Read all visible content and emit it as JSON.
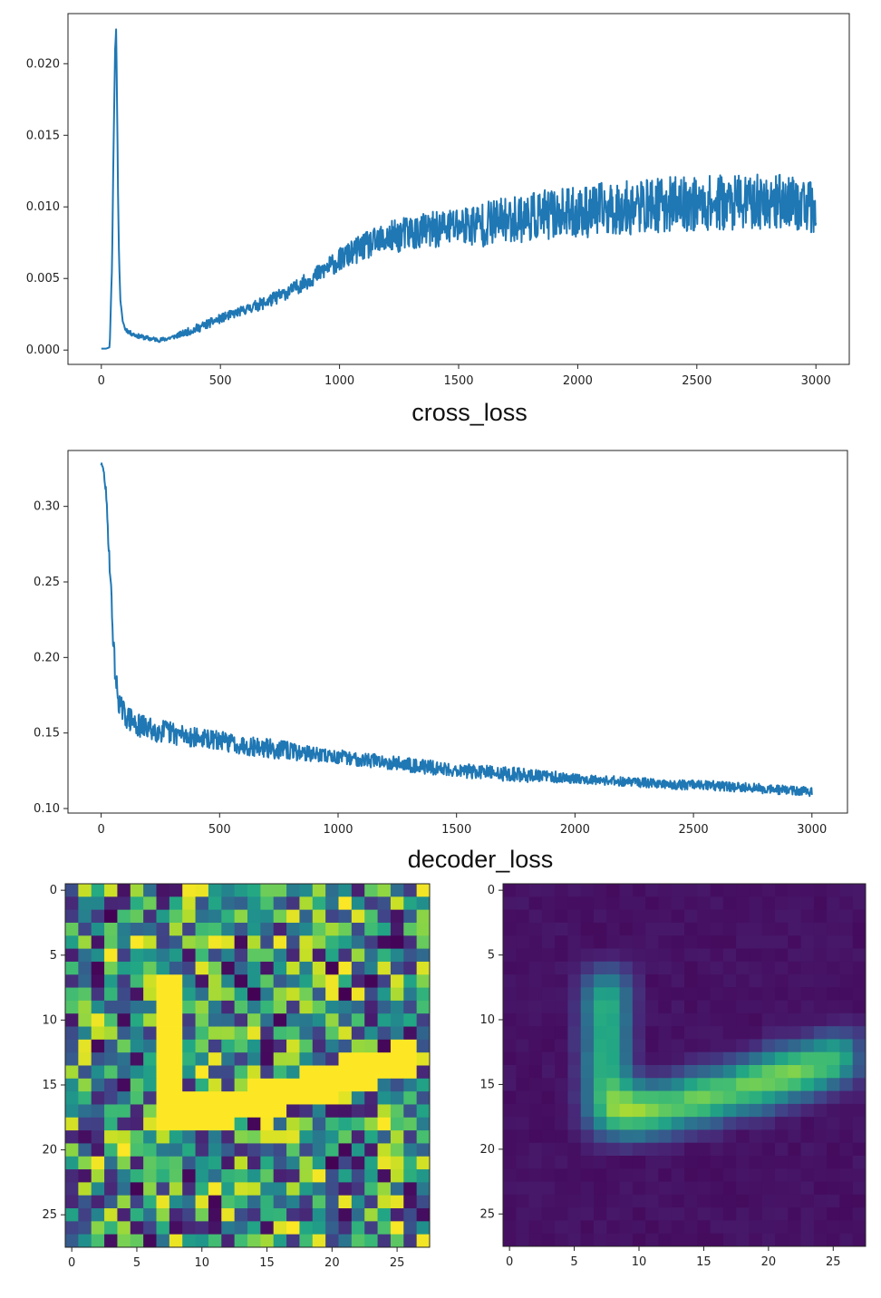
{
  "colors": {
    "series": "#1f77b4",
    "axis": "#222222"
  },
  "captions": {
    "plot1": "cross_loss",
    "plot2": "decoder_loss"
  },
  "chart_data": [
    {
      "type": "line",
      "xlabel": "cross_loss",
      "xlim": [
        -140,
        3140
      ],
      "ylim": [
        -0.001,
        0.0235
      ],
      "x_ticks": [
        0,
        500,
        1000,
        1500,
        2000,
        2500,
        3000
      ],
      "x_tick_labels": [
        "0",
        "500",
        "1000",
        "1500",
        "2000",
        "2500",
        "3000"
      ],
      "y_ticks": [
        0,
        0.005,
        0.01,
        0.015,
        0.02
      ],
      "y_tick_labels": [
        "0.000",
        "0.005",
        "0.010",
        "0.015",
        "0.020"
      ],
      "grid": false,
      "x": [
        0,
        20,
        35,
        45,
        52,
        58,
        62,
        65,
        70,
        75,
        80,
        90,
        100,
        120,
        150,
        200,
        250,
        300,
        400,
        500,
        600,
        700,
        800,
        900,
        1000,
        1100,
        1200,
        1300,
        1400,
        1500,
        1600,
        1700,
        1800,
        1900,
        2000,
        2100,
        2200,
        2300,
        2400,
        2500,
        2600,
        2700,
        2800,
        2900,
        3000
      ],
      "y": [
        0.0001,
        0.0001,
        0.0002,
        0.006,
        0.015,
        0.021,
        0.0224,
        0.019,
        0.011,
        0.006,
        0.0035,
        0.002,
        0.0015,
        0.0012,
        0.001,
        0.0008,
        0.0007,
        0.0009,
        0.0015,
        0.0022,
        0.0028,
        0.0034,
        0.0042,
        0.0052,
        0.0063,
        0.0072,
        0.0078,
        0.0082,
        0.0084,
        0.0087,
        0.0088,
        0.0091,
        0.0093,
        0.0095,
        0.0096,
        0.0098,
        0.0099,
        0.0101,
        0.0102,
        0.0102,
        0.0103,
        0.0103,
        0.0104,
        0.0104,
        0.0098
      ],
      "noise_amplitude": [
        0,
        0,
        0,
        0,
        0,
        0,
        0,
        0,
        0,
        0,
        0,
        0,
        0.0001,
        0.0001,
        0.0001,
        0.0001,
        0.0001,
        0.0001,
        0.0002,
        0.0002,
        0.0002,
        0.0003,
        0.0003,
        0.0004,
        0.0005,
        0.0006,
        0.0007,
        0.0008,
        0.0008,
        0.0009,
        0.001,
        0.001,
        0.0011,
        0.0011,
        0.0011,
        0.0012,
        0.0012,
        0.0012,
        0.0012,
        0.0012,
        0.0012,
        0.0012,
        0.0012,
        0.0012,
        0.0011
      ]
    },
    {
      "type": "line",
      "xlabel": "decoder_loss",
      "xlim": [
        -140,
        3150
      ],
      "ylim": [
        0.097,
        0.337
      ],
      "x_ticks": [
        0,
        500,
        1000,
        1500,
        2000,
        2500,
        3000
      ],
      "x_tick_labels": [
        "0",
        "500",
        "1000",
        "1500",
        "2000",
        "2500",
        "3000"
      ],
      "y_ticks": [
        0.1,
        0.15,
        0.2,
        0.25,
        0.3
      ],
      "y_tick_labels": [
        "0.10",
        "0.15",
        "0.20",
        "0.25",
        "0.30"
      ],
      "grid": false,
      "x": [
        0,
        10,
        20,
        30,
        40,
        50,
        60,
        70,
        80,
        100,
        150,
        200,
        300,
        400,
        500,
        600,
        700,
        800,
        900,
        1000,
        1200,
        1400,
        1600,
        1800,
        2000,
        2200,
        2400,
        2600,
        2800,
        3000
      ],
      "y": [
        0.328,
        0.324,
        0.31,
        0.28,
        0.25,
        0.215,
        0.188,
        0.175,
        0.168,
        0.162,
        0.155,
        0.153,
        0.15,
        0.147,
        0.145,
        0.142,
        0.14,
        0.138,
        0.136,
        0.134,
        0.131,
        0.127,
        0.124,
        0.122,
        0.12,
        0.118,
        0.116,
        0.115,
        0.113,
        0.111
      ],
      "noise_amplitude": [
        0.001,
        0.001,
        0.002,
        0.003,
        0.004,
        0.005,
        0.005,
        0.005,
        0.005,
        0.005,
        0.005,
        0.005,
        0.005,
        0.004,
        0.004,
        0.004,
        0.004,
        0.004,
        0.003,
        0.003,
        0.003,
        0.003,
        0.003,
        0.003,
        0.002,
        0.002,
        0.002,
        0.002,
        0.002,
        0.002
      ]
    },
    {
      "type": "heatmap",
      "title": "",
      "size": [
        28,
        28
      ],
      "colormap": "viridis",
      "x_ticks": [
        0,
        5,
        10,
        15,
        20,
        25
      ],
      "y_ticks": [
        0,
        5,
        10,
        15,
        20,
        25
      ],
      "description_values": "random noise background with a bright yellow L-shaped digit (vertical stroke columns ~7-9 from row ~7 to 18, horizontal stroke rising from ~(18,8) to ~(13,26))"
    },
    {
      "type": "heatmap",
      "title": "",
      "size": [
        28,
        28
      ],
      "colormap": "viridis",
      "x_ticks": [
        0,
        5,
        10,
        15,
        20,
        25
      ],
      "y_ticks": [
        0,
        5,
        10,
        15,
        20,
        25
      ],
      "description_values": "dark purple background with a smooth blurred L-shaped digit reconstruction"
    }
  ]
}
